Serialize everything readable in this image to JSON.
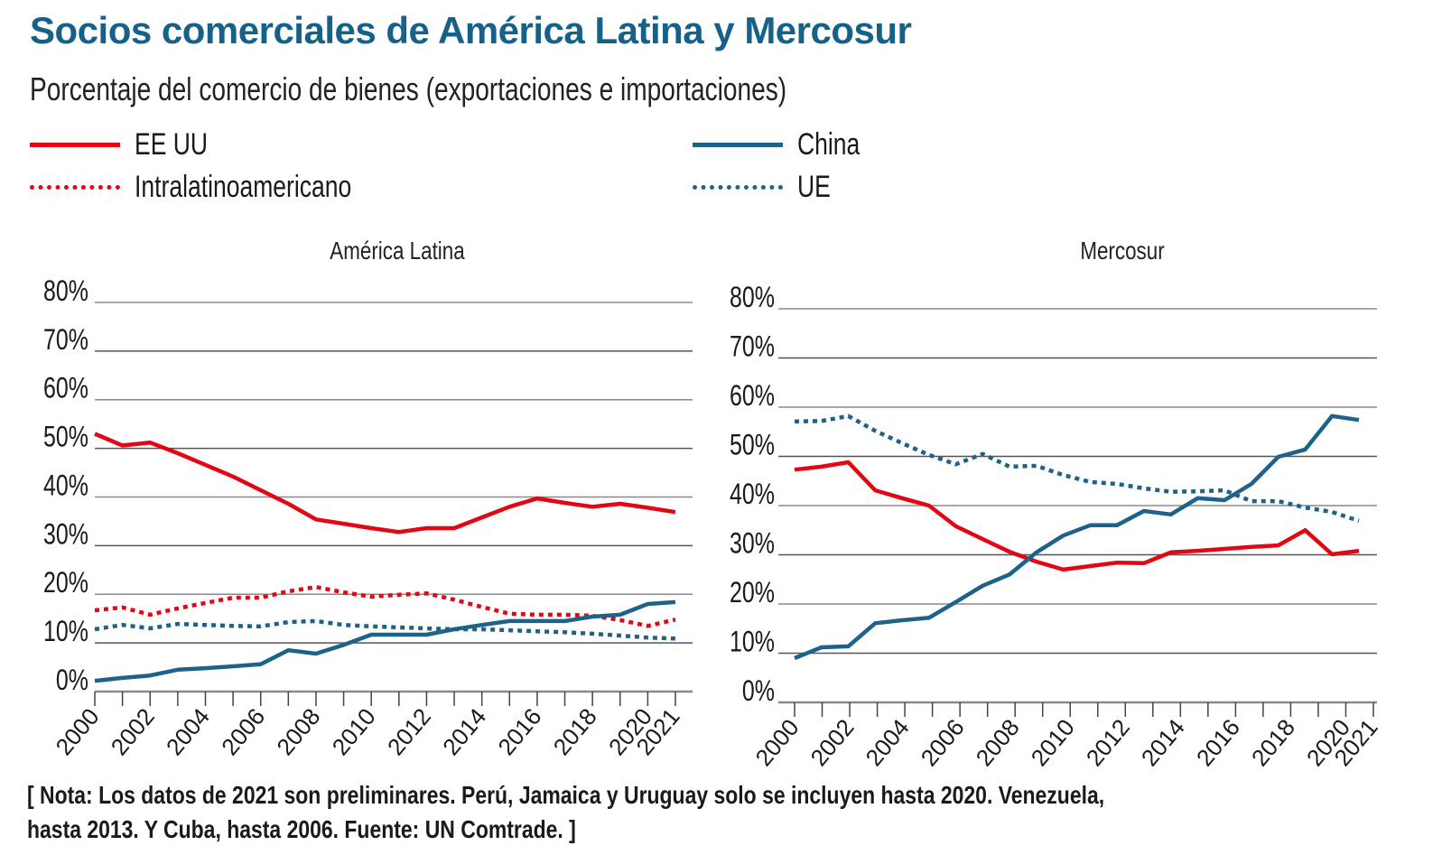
{
  "header": {
    "title": "Socios comerciales de América Latina y Mercosur",
    "subtitle": "Porcentaje del comercio de bienes (exportaciones e importaciones)"
  },
  "legend": [
    {
      "label": "EE UU",
      "color": "#e30613",
      "style": "solid"
    },
    {
      "label": "Intralatinoamericano",
      "color": "#e30613",
      "style": "dotted"
    },
    {
      "label": "China",
      "color": "#1d6289",
      "style": "solid"
    },
    {
      "label": "UE",
      "color": "#1d6289",
      "style": "dotted"
    }
  ],
  "note": {
    "line1": "[ Nota: Los datos de 2021 son preliminares. Perú, Jamaica y Uruguay solo se incluyen hasta 2020. Venezuela,",
    "line2": " hasta 2013. Y Cuba, hasta 2006. Fuente: UN Comtrade. ]"
  },
  "chart_data": [
    {
      "type": "line",
      "title": "América Latina",
      "xlabel": "",
      "ylabel": "",
      "ylim": [
        0,
        80
      ],
      "yticks": [
        "0%",
        "10%",
        "20%",
        "30%",
        "40%",
        "50%",
        "60%",
        "70%",
        "80%"
      ],
      "xticks": [
        "2000",
        "2002",
        "2004",
        "2006",
        "2008",
        "2010",
        "2012",
        "2014",
        "2016",
        "2018",
        "2020",
        "2021"
      ],
      "grid": true,
      "x": [
        2000,
        2001,
        2002,
        2003,
        2004,
        2005,
        2006,
        2007,
        2008,
        2009,
        2010,
        2011,
        2012,
        2013,
        2014,
        2015,
        2016,
        2017,
        2018,
        2019,
        2020,
        2021
      ],
      "series": [
        {
          "name": "EE UU",
          "color": "#e30613",
          "style": "solid",
          "values": [
            53.0,
            50.6,
            51.2,
            49.0,
            46.6,
            44.2,
            41.4,
            38.6,
            35.4,
            34.5,
            33.6,
            32.8,
            33.6,
            33.6,
            35.8,
            38.0,
            39.7,
            38.8,
            38.0,
            38.6,
            37.8,
            36.9
          ]
        },
        {
          "name": "Intralatinoamericano",
          "color": "#e30613",
          "style": "dotted",
          "values": [
            16.7,
            17.3,
            15.8,
            17.1,
            18.2,
            19.3,
            19.3,
            20.6,
            21.5,
            20.4,
            19.5,
            19.9,
            20.2,
            18.9,
            17.4,
            16.0,
            15.8,
            15.8,
            15.6,
            14.7,
            13.5,
            14.8
          ]
        },
        {
          "name": "China",
          "color": "#1d6289",
          "style": "solid",
          "values": [
            2.2,
            2.8,
            3.3,
            4.5,
            4.8,
            5.2,
            5.6,
            8.5,
            7.8,
            9.6,
            11.7,
            11.7,
            11.7,
            12.8,
            13.7,
            14.5,
            14.5,
            14.5,
            15.4,
            15.8,
            18.0,
            18.4
          ]
        },
        {
          "name": "UE",
          "color": "#1d6289",
          "style": "dotted",
          "values": [
            12.8,
            13.7,
            13.0,
            13.9,
            13.7,
            13.5,
            13.4,
            14.3,
            14.5,
            13.7,
            13.4,
            13.2,
            13.0,
            12.8,
            12.8,
            12.6,
            12.4,
            12.2,
            11.9,
            11.5,
            11.1,
            10.9
          ]
        }
      ]
    },
    {
      "type": "line",
      "title": "Mercosur",
      "xlabel": "",
      "ylabel": "",
      "ylim": [
        0,
        80
      ],
      "yticks": [
        "0%",
        "10%",
        "20%",
        "30%",
        "40%",
        "50%",
        "60%",
        "70%",
        "80%"
      ],
      "xticks": [
        "2000",
        "2002",
        "2004",
        "2006",
        "2008",
        "2010",
        "2012",
        "2014",
        "2016",
        "2018",
        "2020",
        "2021"
      ],
      "grid": true,
      "x": [
        2000,
        2001,
        2002,
        2003,
        2004,
        2005,
        2006,
        2007,
        2008,
        2009,
        2010,
        2011,
        2012,
        2013,
        2014,
        2015,
        2016,
        2017,
        2018,
        2019,
        2020,
        2021
      ],
      "series": [
        {
          "name": "EE UU",
          "color": "#e30613",
          "style": "solid",
          "values": [
            47.3,
            47.9,
            48.8,
            43.1,
            41.5,
            40.0,
            35.8,
            33.2,
            30.6,
            28.6,
            27.0,
            27.7,
            28.4,
            28.3,
            30.5,
            30.8,
            31.2,
            31.6,
            31.9,
            35.0,
            30.1,
            30.8
          ]
        },
        {
          "name": "China",
          "color": "#1d6289",
          "style": "solid",
          "values": [
            9.0,
            11.2,
            11.4,
            16.1,
            16.7,
            17.2,
            20.4,
            23.7,
            26.0,
            30.5,
            33.9,
            36.0,
            36.0,
            38.9,
            38.2,
            41.5,
            41.1,
            44.4,
            49.9,
            51.4,
            58.2,
            57.4
          ]
        },
        {
          "name": "UE",
          "color": "#1d6289",
          "style": "dotted",
          "values": [
            57.1,
            57.2,
            58.2,
            55.2,
            52.7,
            50.3,
            48.4,
            50.5,
            47.9,
            48.1,
            46.2,
            44.8,
            44.4,
            43.5,
            42.8,
            42.9,
            43.1,
            40.9,
            40.9,
            39.6,
            38.7,
            36.9
          ]
        }
      ]
    }
  ]
}
